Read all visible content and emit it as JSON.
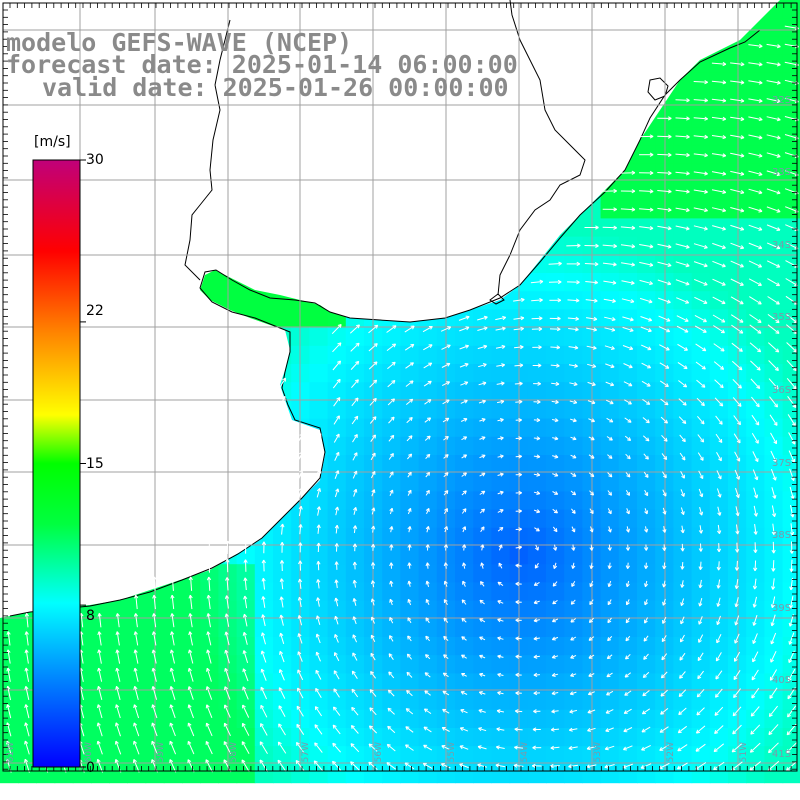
{
  "header": {
    "line1": "modelo GEFS-WAVE (NCEP)",
    "line2": "forecast date: 2025-01-14 06:00:00",
    "line3": "valid date: 2025-01-26 00:00:00"
  },
  "colorbar": {
    "unit": "[m/s]",
    "ticks": [
      "30",
      "22",
      "15",
      "8",
      "0"
    ],
    "tick_values": [
      30,
      22,
      15,
      8,
      0
    ],
    "range": [
      0,
      30
    ],
    "stops": [
      "#0000ff",
      "#00a0ff",
      "#00ffff",
      "#00ff00",
      "#ffff00",
      "#ff8000",
      "#ff0000",
      "#c0007a"
    ]
  },
  "map": {
    "land_color": "#ffffff",
    "grid_color": "#a0a0a0",
    "lat_labels": [
      "32S",
      "33S",
      "34S",
      "35S",
      "36S",
      "37S",
      "38S",
      "39S",
      "40S",
      "41S"
    ],
    "lon_labels": [
      "61W",
      "60W",
      "59W",
      "58W",
      "57W",
      "56W",
      "55W",
      "54W",
      "53W",
      "52W",
      "51W"
    ]
  },
  "chart_data": {
    "type": "heatmap",
    "variable": "wind speed",
    "unit": "m/s",
    "cyclone_center": {
      "lon": -54,
      "lat": -38
    },
    "speed_range_shown": [
      3,
      11
    ]
  }
}
